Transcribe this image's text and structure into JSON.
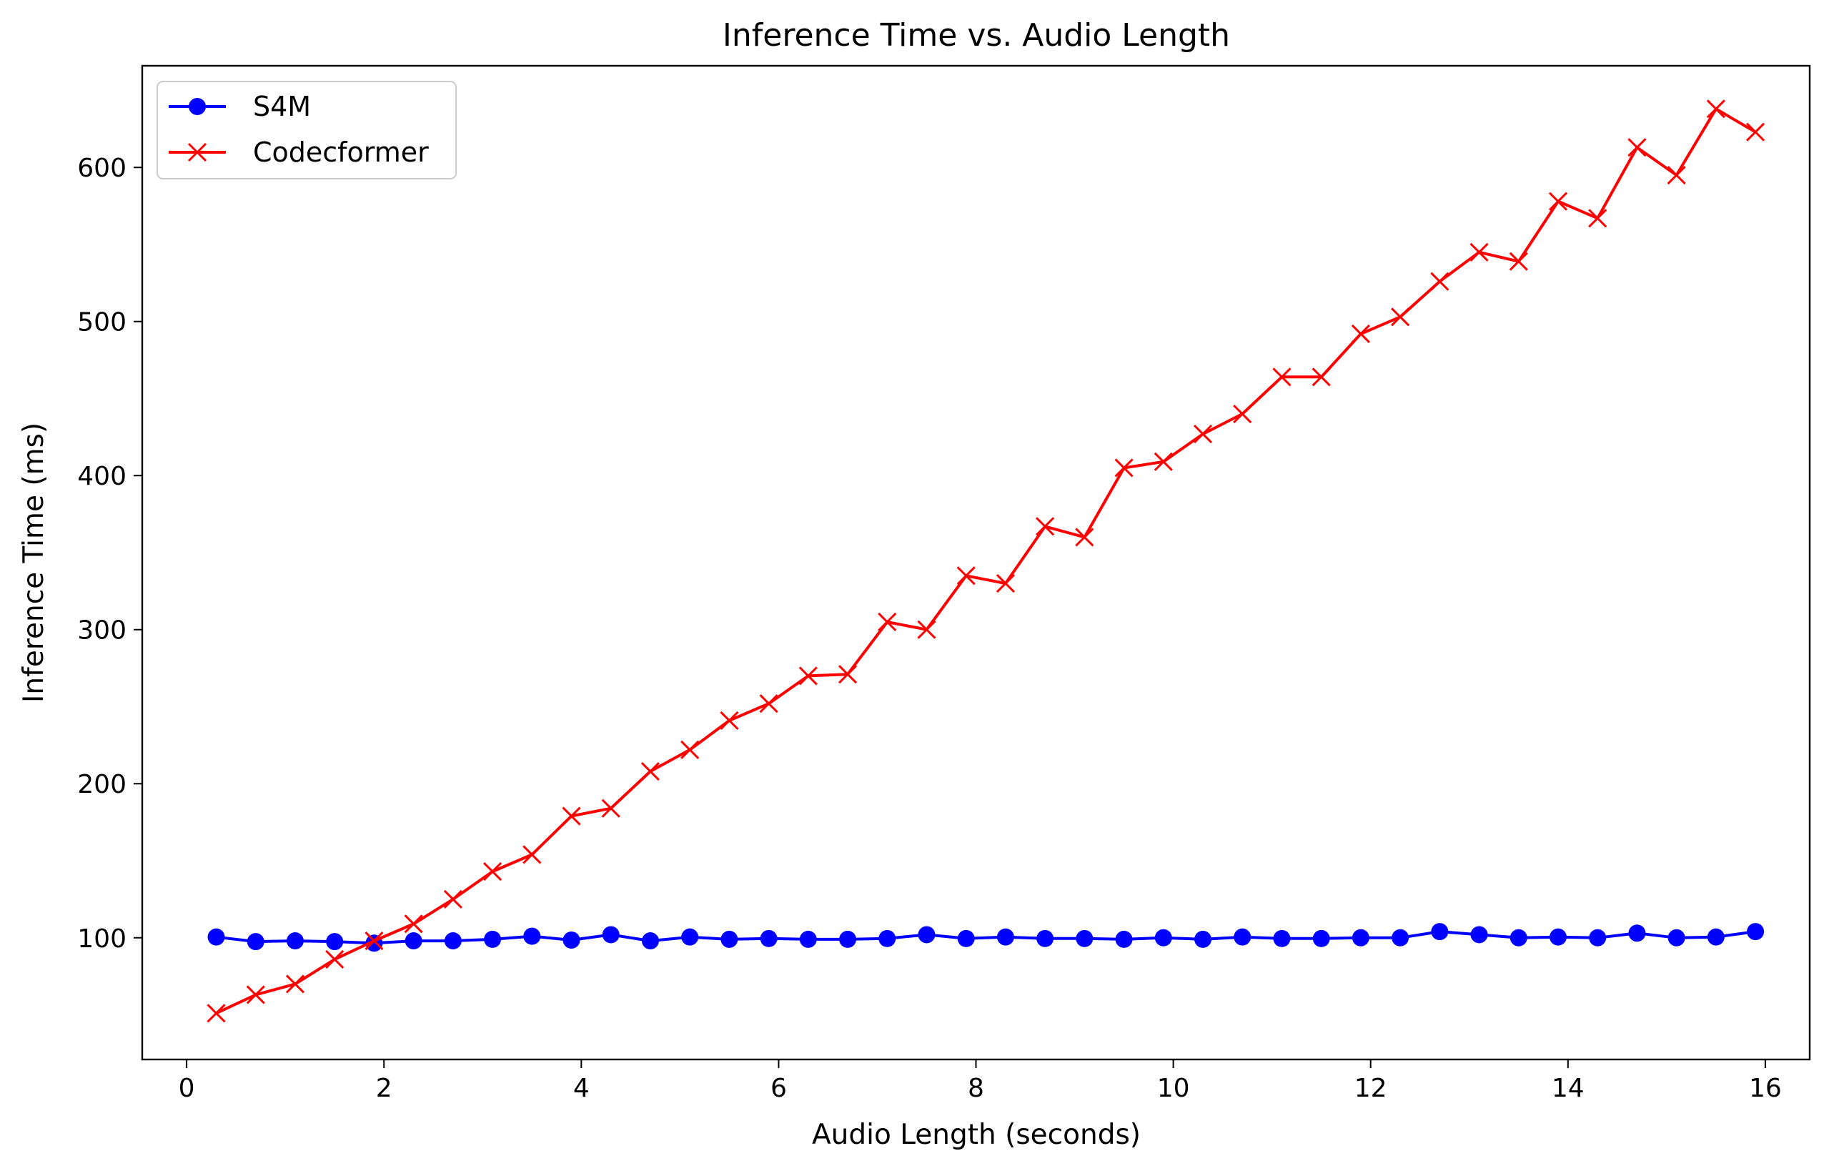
{
  "chart_data": {
    "type": "line",
    "title": "Inference Time vs. Audio Length",
    "xlabel": "Audio Length (seconds)",
    "ylabel": "Inference Time (ms)",
    "xlim": [
      -0.45,
      16.45
    ],
    "ylim": [
      21,
      666
    ],
    "xticks": [
      0,
      2,
      4,
      6,
      8,
      10,
      12,
      14,
      16
    ],
    "yticks": [
      100,
      200,
      300,
      400,
      500,
      600
    ],
    "x": [
      0.3,
      0.7,
      1.1,
      1.5,
      1.9,
      2.3,
      2.7,
      3.1,
      3.5,
      3.9,
      4.3,
      4.7,
      5.1,
      5.5,
      5.9,
      6.3,
      6.7,
      7.1,
      7.5,
      7.9,
      8.3,
      8.7,
      9.1,
      9.5,
      9.9,
      10.3,
      10.7,
      11.1,
      11.5,
      11.9,
      12.3,
      12.7,
      13.1,
      13.5,
      13.9,
      14.3,
      14.7,
      15.1,
      15.5,
      15.9
    ],
    "grid": false,
    "legend_position": "upper-left",
    "series": [
      {
        "name": "S4M",
        "color": "#0000ff",
        "marker": "circle",
        "values": [
          100.5,
          97.5,
          98,
          97.5,
          96.5,
          98,
          98,
          99,
          101,
          98.5,
          102,
          98,
          100.5,
          99,
          99.5,
          99,
          99,
          99.5,
          102,
          99.5,
          100.5,
          99.5,
          99.5,
          99,
          100,
          99,
          100.5,
          99.5,
          99.5,
          100,
          100,
          104,
          102,
          100,
          100.5,
          100,
          103,
          100,
          100.5,
          104
        ]
      },
      {
        "name": "Codecformer",
        "color": "#ff0000",
        "marker": "x",
        "values": [
          51,
          63,
          70,
          86,
          98,
          109,
          125,
          143,
          154,
          179,
          184,
          208,
          222,
          241,
          252,
          270,
          271,
          305,
          300,
          335,
          330,
          367,
          360,
          405,
          409,
          427,
          440,
          464,
          464,
          492,
          503,
          526,
          545,
          539,
          578,
          567,
          613,
          595,
          638,
          623
        ]
      }
    ]
  }
}
